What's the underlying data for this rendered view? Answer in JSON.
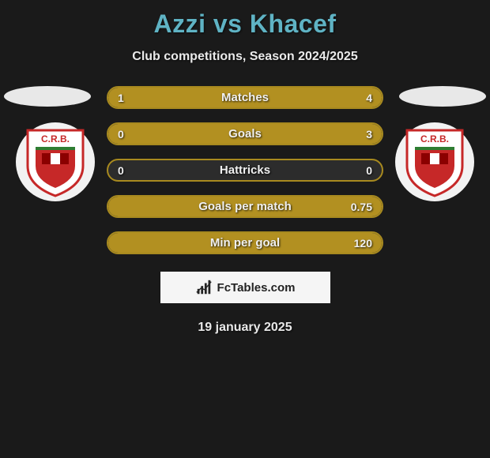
{
  "title": "Azzi vs Khacef",
  "subtitle": "Club competitions, Season 2024/2025",
  "brand": "FcTables.com",
  "date": "19 january 2025",
  "colors": {
    "title": "#5fb3c4",
    "bar_fill": "#b29021",
    "bar_border": "#a88a1f",
    "bar_bg": "#2c2c2c",
    "background": "#1a1a1a",
    "badge_bg": "#f2f2f2",
    "badge_red": "#c62828",
    "badge_darkred": "#8b0000",
    "badge_green": "#2e7d32"
  },
  "club_left": {
    "text": "C.R.B."
  },
  "club_right": {
    "text": "C.R.B."
  },
  "bars": [
    {
      "label": "Matches",
      "left": "1",
      "right": "4",
      "left_pct": 20,
      "right_pct": 80
    },
    {
      "label": "Goals",
      "left": "0",
      "right": "3",
      "left_pct": 0,
      "right_pct": 100
    },
    {
      "label": "Hattricks",
      "left": "0",
      "right": "0",
      "left_pct": 0,
      "right_pct": 0
    },
    {
      "label": "Goals per match",
      "left": "",
      "right": "0.75",
      "left_pct": 0,
      "right_pct": 100
    },
    {
      "label": "Min per goal",
      "left": "",
      "right": "120",
      "left_pct": 0,
      "right_pct": 100
    }
  ]
}
